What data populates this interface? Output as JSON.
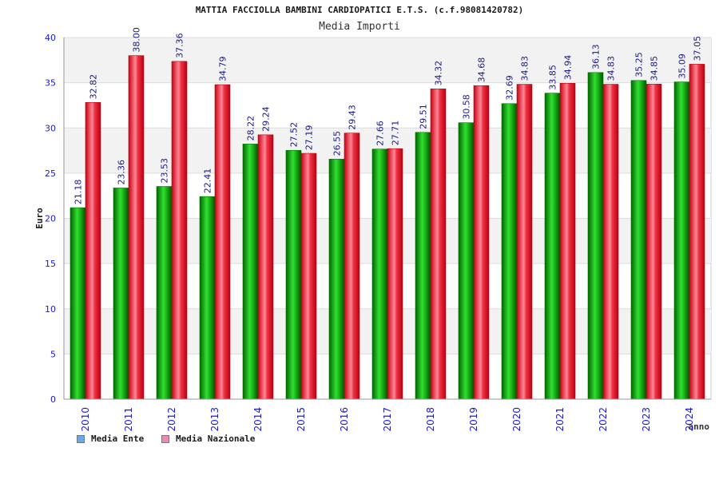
{
  "title": "MATTIA FACCIOLLA BAMBINI CARDIOPATICI E.T.S. (c.f.98081420782)",
  "subtitle": "Media Importi",
  "colors": {
    "ente": "#22bb22",
    "ente_dark": "#007700",
    "nazionale": "#ee3344",
    "nazionale_dark": "#bb0011",
    "legend_ente": "#66aaee",
    "legend_nazionale": "#ee88bb",
    "axis_text": "#1a1acc",
    "label_text": "#1a1a88"
  },
  "chart_data": {
    "type": "bar",
    "xlabel": "anno",
    "ylabel": "Euro",
    "ylim": [
      0,
      40
    ],
    "yticks": [
      0,
      5,
      10,
      15,
      20,
      25,
      30,
      35,
      40
    ],
    "categories": [
      "2010",
      "2011",
      "2012",
      "2013",
      "2014",
      "2015",
      "2016",
      "2017",
      "2018",
      "2019",
      "2020",
      "2021",
      "2022",
      "2023",
      "2024"
    ],
    "series": [
      {
        "name": "Media Ente",
        "values": [
          21.18,
          23.36,
          23.53,
          22.41,
          28.22,
          27.52,
          26.55,
          27.66,
          29.51,
          30.58,
          32.69,
          33.85,
          36.13,
          35.25,
          35.09
        ],
        "labels": [
          "21.18",
          "23.36",
          "23.53",
          "22.41",
          "28.22",
          "27.52",
          "26.55",
          "27.66",
          "29.51",
          "30.58",
          "32.69",
          "33.85",
          "36.13",
          "35.25",
          "35.09"
        ]
      },
      {
        "name": "Media Nazionale",
        "values": [
          32.82,
          38.0,
          37.36,
          34.79,
          29.24,
          27.19,
          29.43,
          27.71,
          34.32,
          34.68,
          34.83,
          34.94,
          34.83,
          34.85,
          37.05
        ],
        "labels": [
          "32.82",
          "38.00",
          "37.36",
          "34.79",
          "29.24",
          "27.19",
          "29.43",
          "27.71",
          "34.32",
          "34.68",
          "34.83",
          "34.94",
          "34.83",
          "34.85",
          "37.05"
        ]
      }
    ],
    "grid": true,
    "legend_position": "bottom-left"
  }
}
